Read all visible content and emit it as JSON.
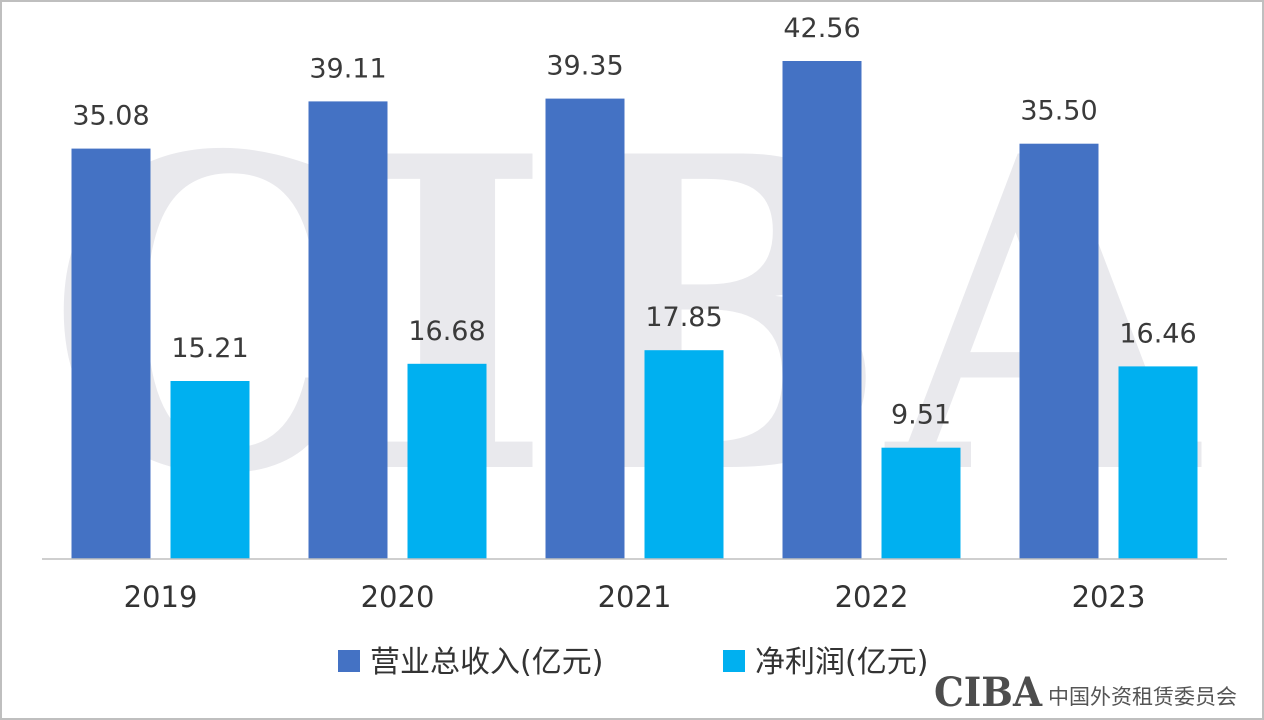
{
  "watermark": {
    "text": "CIBA"
  },
  "footer": {
    "logo_text": "CIBA",
    "org_name": "中国外资租赁委员会"
  },
  "colors": {
    "revenue": "#4472c4",
    "profit": "#00b0f0",
    "axis": "#bfbfbf"
  },
  "chart_data": {
    "type": "bar",
    "categories": [
      "2019",
      "2020",
      "2021",
      "2022",
      "2023"
    ],
    "series": [
      {
        "name": "营业总收入(亿元)",
        "values": [
          35.08,
          39.11,
          39.35,
          42.56,
          35.5
        ],
        "labels": [
          "35.08",
          "39.11",
          "39.35",
          "42.56",
          "35.50"
        ],
        "color": "#4472c4"
      },
      {
        "name": "净利润(亿元)",
        "values": [
          15.21,
          16.68,
          17.85,
          9.51,
          16.46
        ],
        "labels": [
          "15.21",
          "16.68",
          "17.85",
          "9.51",
          "16.46"
        ],
        "color": "#00b0f0"
      }
    ],
    "ylim": [
      0,
      45
    ],
    "grid": false,
    "legend": "bottom",
    "data_labels": true
  }
}
